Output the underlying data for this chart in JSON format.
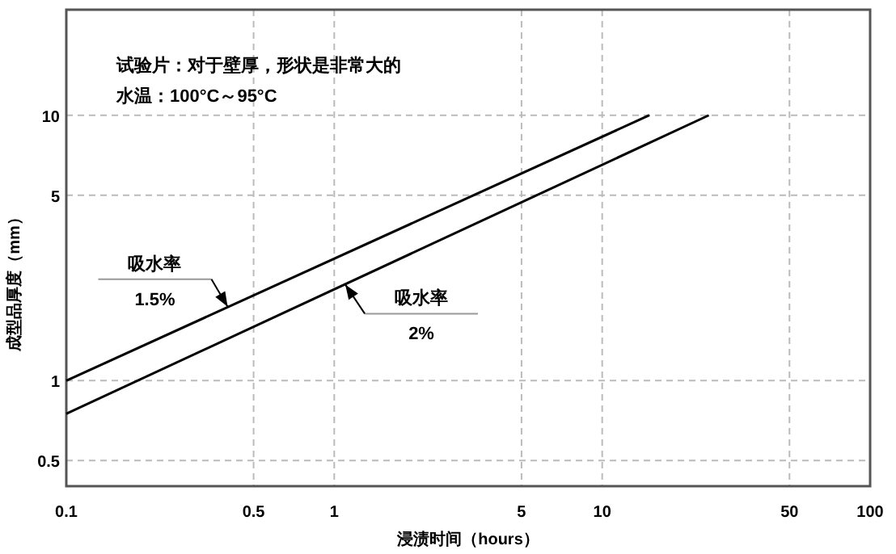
{
  "chart_data": {
    "type": "line",
    "title": "试验片：对于壁厚，形状是非常大的",
    "subtitle": "水温：100°C～95°C",
    "xlabel": "浸渍时间（hours）",
    "ylabel": "成型品厚度（mm）",
    "log": "xy",
    "grid": true,
    "xlim": [
      0.1,
      100
    ],
    "ylim": [
      0.4,
      25
    ],
    "xticks": [
      0.1,
      0.5,
      1,
      5,
      10,
      50,
      100
    ],
    "yticks": [
      0.5,
      1,
      5,
      10
    ],
    "series": [
      {
        "color": "#000000",
        "x": [
          0.1,
          15
        ],
        "values": [
          1,
          10
        ]
      },
      {
        "color": "#000000",
        "x": [
          0.1,
          25
        ],
        "values": [
          0.75,
          10
        ]
      }
    ],
    "annotations": [
      {
        "text": "吸水率 1.5%",
        "x": 0.4,
        "y": 1.9
      },
      {
        "text": "吸水率 2%",
        "x": 1.1,
        "y": 2.3
      }
    ]
  }
}
